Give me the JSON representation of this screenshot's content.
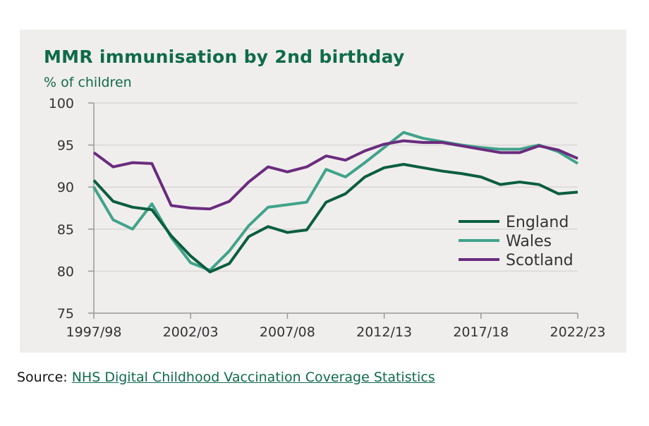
{
  "chart_data": {
    "type": "line",
    "title": "MMR immunisation by 2nd birthday",
    "ylabel": "% of children",
    "xlabel": "",
    "ylim": [
      75,
      100
    ],
    "yticks": [
      75,
      80,
      85,
      90,
      95,
      100
    ],
    "grid": true,
    "legend_position": "right",
    "x": [
      "1997/98",
      "1998/99",
      "1999/00",
      "2000/01",
      "2001/02",
      "2002/03",
      "2003/04",
      "2004/05",
      "2005/06",
      "2006/07",
      "2007/08",
      "2008/09",
      "2009/10",
      "2010/11",
      "2011/12",
      "2012/13",
      "2013/14",
      "2014/15",
      "2015/16",
      "2016/17",
      "2017/18",
      "2018/19",
      "2019/20",
      "2020/21",
      "2021/22",
      "2022/23"
    ],
    "xtick_labels": [
      "1997/98",
      "2002/03",
      "2007/08",
      "2012/13",
      "2017/18",
      "2022/23"
    ],
    "series": [
      {
        "name": "England",
        "color": "#0b5e3f",
        "values": [
          90.8,
          88.3,
          87.6,
          87.3,
          84.2,
          81.8,
          79.9,
          80.9,
          84.1,
          85.3,
          84.6,
          84.9,
          88.2,
          89.2,
          91.2,
          92.3,
          92.7,
          92.3,
          91.9,
          91.6,
          91.2,
          90.3,
          90.6,
          90.3,
          89.2,
          89.4
        ]
      },
      {
        "name": "Wales",
        "color": "#41a38a",
        "values": [
          90.0,
          86.1,
          85.0,
          88.0,
          84.0,
          81.0,
          80.1,
          82.4,
          85.4,
          87.6,
          87.9,
          88.2,
          92.1,
          91.2,
          92.9,
          94.7,
          96.5,
          95.8,
          95.4,
          95.0,
          94.7,
          94.5,
          94.5,
          95.0,
          94.2,
          92.8
        ]
      },
      {
        "name": "Scotland",
        "color": "#6a2c7e",
        "values": [
          94.1,
          92.4,
          92.9,
          92.8,
          87.8,
          87.5,
          87.4,
          88.3,
          90.6,
          92.4,
          91.8,
          92.4,
          93.7,
          93.2,
          94.3,
          95.1,
          95.5,
          95.3,
          95.3,
          94.9,
          94.5,
          94.1,
          94.1,
          94.9,
          94.4,
          93.4
        ]
      }
    ]
  },
  "source": {
    "label": "Source:",
    "link_text": "NHS Digital Childhood Vaccination Coverage Statistics"
  }
}
